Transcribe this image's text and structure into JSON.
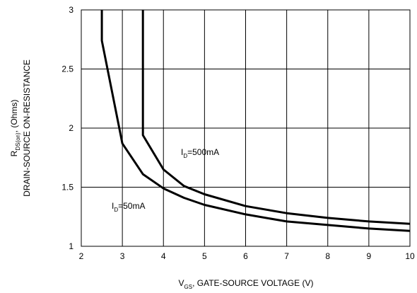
{
  "chart_data": {
    "type": "line",
    "title": "",
    "xlabel": {
      "main": "V",
      "sub": "GS",
      "rest": ", GATE-SOURCE VOLTAGE (V)"
    },
    "ylabel": {
      "line1_main": "R",
      "line1_sub": "DS(on)",
      "line1_rest": ", (Ohms)",
      "line2": "DRAIN-SOURCE ON-RESISTANCE"
    },
    "xlim": [
      2,
      10
    ],
    "ylim": [
      1,
      3
    ],
    "x_ticks": [
      "2",
      "3",
      "4",
      "5",
      "6",
      "7",
      "8",
      "9",
      "10"
    ],
    "y_ticks": [
      "1",
      "1.5",
      "2",
      "2.5",
      "3"
    ],
    "grid": true,
    "legend": "none",
    "series": [
      {
        "label_main": "I",
        "label_sub": "D",
        "label_rest": "=50mA",
        "x": [
          2.5,
          2.5,
          3.0,
          3.5,
          4.0,
          4.5,
          5.0,
          6.0,
          7.0,
          8.0,
          9.0,
          10.0
        ],
        "y": [
          3.0,
          2.74,
          1.87,
          1.61,
          1.49,
          1.41,
          1.35,
          1.27,
          1.21,
          1.18,
          1.15,
          1.13
        ]
      },
      {
        "label_main": "I",
        "label_sub": "D",
        "label_rest": "=500mA",
        "x": [
          3.5,
          3.5,
          4.0,
          4.5,
          5.0,
          6.0,
          7.0,
          8.0,
          9.0,
          10.0
        ],
        "y": [
          3.0,
          1.94,
          1.65,
          1.51,
          1.44,
          1.34,
          1.28,
          1.24,
          1.21,
          1.19
        ]
      }
    ]
  }
}
